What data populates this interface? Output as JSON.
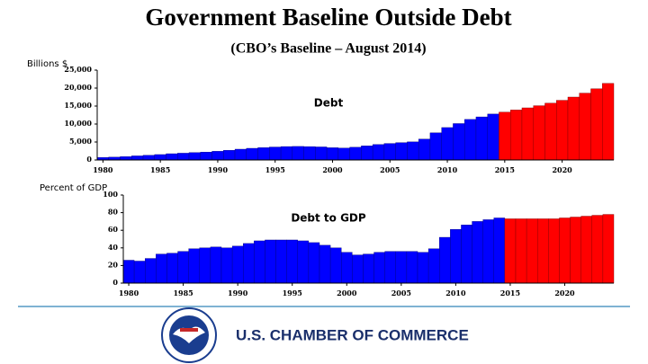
{
  "title": "Government Baseline Outside Debt",
  "subtitle": "(CBO’s Baseline – August 2014)",
  "footer": {
    "organization": "U.S. CHAMBER OF COMMERCE"
  },
  "chart_data": [
    {
      "type": "bar",
      "ylabel": "Billions $",
      "annotation": "Debt",
      "x": [
        1980,
        1981,
        1982,
        1983,
        1984,
        1985,
        1986,
        1987,
        1988,
        1989,
        1990,
        1991,
        1992,
        1993,
        1994,
        1995,
        1996,
        1997,
        1998,
        1999,
        2000,
        2001,
        2002,
        2003,
        2004,
        2005,
        2006,
        2007,
        2008,
        2009,
        2010,
        2011,
        2012,
        2013,
        2014,
        2015,
        2016,
        2017,
        2018,
        2019,
        2020,
        2021,
        2022,
        2023,
        2024
      ],
      "values": [
        712,
        789,
        925,
        1137,
        1307,
        1507,
        1741,
        1890,
        2052,
        2191,
        2412,
        2689,
        3000,
        3248,
        3433,
        3604,
        3734,
        3772,
        3721,
        3632,
        3410,
        3320,
        3540,
        3913,
        4296,
        4592,
        4829,
        5035,
        5803,
        7545,
        9019,
        10128,
        11281,
        11983,
        12779,
        13300,
        13900,
        14500,
        15100,
        15800,
        16600,
        17500,
        18600,
        19800,
        21300
      ],
      "colors": [
        "#0000ff",
        "#0000ff",
        "#0000ff",
        "#0000ff",
        "#0000ff",
        "#0000ff",
        "#0000ff",
        "#0000ff",
        "#0000ff",
        "#0000ff",
        "#0000ff",
        "#0000ff",
        "#0000ff",
        "#0000ff",
        "#0000ff",
        "#0000ff",
        "#0000ff",
        "#0000ff",
        "#0000ff",
        "#0000ff",
        "#0000ff",
        "#0000ff",
        "#0000ff",
        "#0000ff",
        "#0000ff",
        "#0000ff",
        "#0000ff",
        "#0000ff",
        "#0000ff",
        "#0000ff",
        "#0000ff",
        "#0000ff",
        "#0000ff",
        "#0000ff",
        "#0000ff",
        "#ff0000",
        "#ff0000",
        "#ff0000",
        "#ff0000",
        "#ff0000",
        "#ff0000",
        "#ff0000",
        "#ff0000",
        "#ff0000",
        "#ff0000"
      ],
      "xlim": [
        1979.5,
        2024.5
      ],
      "xticks": [
        1980,
        1985,
        1990,
        1995,
        2000,
        2005,
        2010,
        2015,
        2020
      ],
      "ylim": [
        0,
        25000
      ],
      "yticks": [
        0,
        {
          "value": 5000,
          "label": "5,000"
        },
        {
          "value": 10000,
          "label": "10,000"
        },
        {
          "value": 15000,
          "label": "15,000"
        },
        {
          "value": 20000,
          "label": "20,000"
        },
        {
          "value": 25000,
          "label": "25,000"
        }
      ]
    },
    {
      "type": "bar",
      "ylabel": "Percent of GDP",
      "annotation": "Debt to GDP",
      "x": [
        1980,
        1981,
        1982,
        1983,
        1984,
        1985,
        1986,
        1987,
        1988,
        1989,
        1990,
        1991,
        1992,
        1993,
        1994,
        1995,
        1996,
        1997,
        1998,
        1999,
        2000,
        2001,
        2002,
        2003,
        2004,
        2005,
        2006,
        2007,
        2008,
        2009,
        2010,
        2011,
        2012,
        2013,
        2014,
        2015,
        2016,
        2017,
        2018,
        2019,
        2020,
        2021,
        2022,
        2023,
        2024
      ],
      "values": [
        26,
        25,
        28,
        33,
        34,
        36,
        39,
        40,
        41,
        40,
        42,
        45,
        48,
        49,
        49,
        49,
        48,
        46,
        43,
        40,
        35,
        32,
        33,
        35,
        36,
        36,
        36,
        35,
        39,
        52,
        61,
        66,
        70,
        72,
        74,
        73,
        73,
        73,
        73,
        73,
        74,
        75,
        76,
        77,
        78
      ],
      "colors": [
        "#0000ff",
        "#0000ff",
        "#0000ff",
        "#0000ff",
        "#0000ff",
        "#0000ff",
        "#0000ff",
        "#0000ff",
        "#0000ff",
        "#0000ff",
        "#0000ff",
        "#0000ff",
        "#0000ff",
        "#0000ff",
        "#0000ff",
        "#0000ff",
        "#0000ff",
        "#0000ff",
        "#0000ff",
        "#0000ff",
        "#0000ff",
        "#0000ff",
        "#0000ff",
        "#0000ff",
        "#0000ff",
        "#0000ff",
        "#0000ff",
        "#0000ff",
        "#0000ff",
        "#0000ff",
        "#0000ff",
        "#0000ff",
        "#0000ff",
        "#0000ff",
        "#0000ff",
        "#ff0000",
        "#ff0000",
        "#ff0000",
        "#ff0000",
        "#ff0000",
        "#ff0000",
        "#ff0000",
        "#ff0000",
        "#ff0000",
        "#ff0000"
      ],
      "xlim": [
        1979.5,
        2024.5
      ],
      "xticks": [
        1980,
        1985,
        1990,
        1995,
        2000,
        2005,
        2010,
        2015,
        2020
      ],
      "ylim": [
        0,
        100
      ],
      "yticks": [
        0,
        20,
        40,
        60,
        80,
        100
      ]
    }
  ]
}
